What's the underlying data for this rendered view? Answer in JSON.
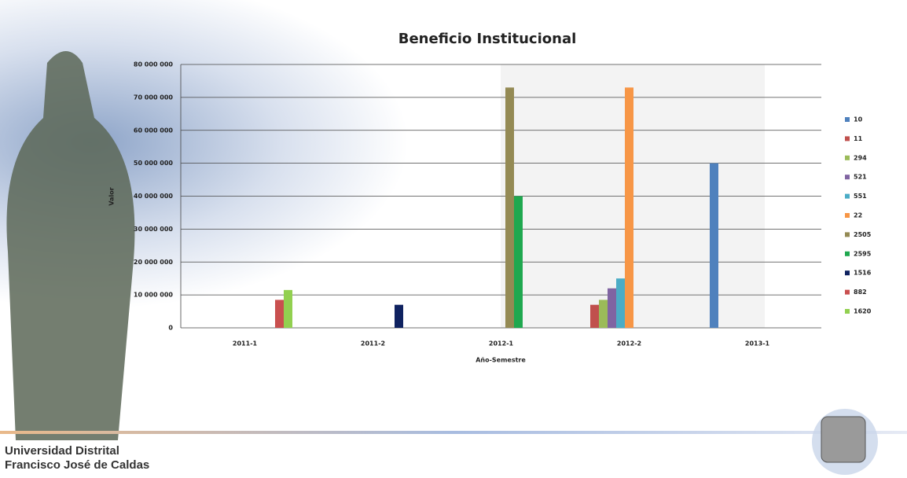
{
  "chart_data": {
    "type": "bar",
    "title": "Beneficio Institucional",
    "x_label": "Año-Semestre",
    "y_label": "Valor",
    "categories": [
      "2011-1",
      "2011-2",
      "2012-1",
      "2012-2",
      "2013-1"
    ],
    "series": [
      {
        "name": "10",
        "color": "#4f81bd",
        "values": [
          null,
          null,
          null,
          null,
          50000000
        ]
      },
      {
        "name": "11",
        "color": "#c0504d",
        "values": [
          null,
          null,
          null,
          7000000,
          null
        ]
      },
      {
        "name": "294",
        "color": "#9bbb59",
        "values": [
          null,
          null,
          null,
          8500000,
          null
        ]
      },
      {
        "name": "521",
        "color": "#8064a2",
        "values": [
          null,
          null,
          null,
          12000000,
          null
        ]
      },
      {
        "name": "551",
        "color": "#4bacc6",
        "values": [
          null,
          null,
          null,
          15000000,
          null
        ]
      },
      {
        "name": "22",
        "color": "#f79646",
        "values": [
          null,
          null,
          null,
          73000000,
          null
        ]
      },
      {
        "name": "2505",
        "color": "#948a54",
        "values": [
          null,
          null,
          73000000,
          null,
          null
        ]
      },
      {
        "name": "2595",
        "color": "#1fa84f",
        "values": [
          null,
          null,
          40000000,
          null,
          null
        ]
      },
      {
        "name": "1516",
        "color": "#0f2260",
        "values": [
          null,
          7000000,
          null,
          null,
          null
        ]
      },
      {
        "name": "882",
        "color": "#c9504f",
        "values": [
          8500000,
          null,
          null,
          null,
          null
        ]
      },
      {
        "name": "1620",
        "color": "#92d050",
        "values": [
          11500000,
          null,
          null,
          null,
          null
        ]
      }
    ],
    "ylim": [
      0,
      80000000
    ],
    "yticks": [
      0,
      {
        "value": 10000000,
        "label": "10 000 000"
      },
      {
        "value": 20000000,
        "label": "20 000 000"
      },
      {
        "value": 30000000,
        "label": "30 000 000"
      },
      {
        "value": 40000000,
        "label": "40 000 000"
      },
      {
        "value": 50000000,
        "label": "50 000 000"
      },
      {
        "value": 60000000,
        "label": "60 000 000"
      },
      {
        "value": 70000000,
        "label": "70 000 000"
      },
      {
        "value": 80000000,
        "label": "80 000 000"
      }
    ],
    "grid": true
  },
  "footer": {
    "line1": "Universidad Distrital",
    "line2": "Francisco José de Caldas"
  }
}
